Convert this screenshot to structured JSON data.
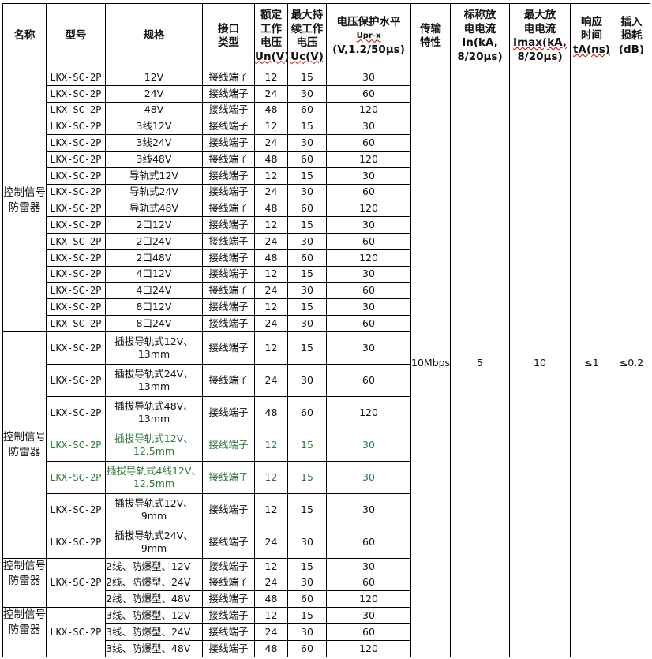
{
  "header": {
    "name": "名称",
    "model": "型号",
    "spec": "规格",
    "interface": "接口类型",
    "un": "额定工作电压",
    "un_unit": "Un(V)",
    "uc": "最大持续工作电压",
    "uc_unit": "Uc(V)",
    "up": "电压保护水平",
    "up_sym": "Upr-x",
    "up_unit": "(V,1.2/50μs)",
    "trans": "传输特性",
    "in": "标称放电电流",
    "in_unit1": "In(kA,",
    "in_unit2": "8/20μs)",
    "imax": "最大放电电流",
    "imax_unit1": "Imax(kA,",
    "imax_unit2": "8/20μs)",
    "ta": "响应时间",
    "ta_unit": "tA(ns)",
    "loss": "插入损耗",
    "loss_unit": "(dB)"
  },
  "shared": {
    "trans": "10Mbps",
    "in": "5",
    "imax": "10",
    "ta": "≤1",
    "loss": "≤0.2"
  },
  "accent_green": "#2f7a3a",
  "groups": [
    {
      "name": "控制信号防雷器",
      "model_merged": false,
      "tall": false,
      "rows": [
        [
          "LKX-SC-2P",
          "12V",
          "接线端子",
          "12",
          "15",
          "30"
        ],
        [
          "LKX-SC-2P",
          "24V",
          "接线端子",
          "24",
          "30",
          "60"
        ],
        [
          "LKX-SC-2P",
          "48V",
          "接线端子",
          "48",
          "60",
          "120"
        ],
        [
          "LKX-SC-2P",
          "3线12V",
          "接线端子",
          "12",
          "15",
          "30"
        ],
        [
          "LKX-SC-2P",
          "3线24V",
          "接线端子",
          "24",
          "30",
          "60"
        ],
        [
          "LKX-SC-2P",
          "3线48V",
          "接线端子",
          "48",
          "60",
          "120"
        ],
        [
          "LKX-SC-2P",
          "导轨式12V",
          "接线端子",
          "12",
          "15",
          "30"
        ],
        [
          "LKX-SC-2P",
          "导轨式24V",
          "接线端子",
          "24",
          "30",
          "60"
        ],
        [
          "LKX-SC-2P",
          "导轨式48V",
          "接线端子",
          "48",
          "60",
          "120"
        ],
        [
          "LKX-SC-2P",
          "2口12V",
          "接线端子",
          "12",
          "15",
          "30"
        ],
        [
          "LKX-SC-2P",
          "2口24V",
          "接线端子",
          "24",
          "30",
          "60"
        ],
        [
          "LKX-SC-2P",
          "2口48V",
          "接线端子",
          "48",
          "60",
          "120"
        ],
        [
          "LKX-SC-2P",
          "4口12V",
          "接线端子",
          "12",
          "15",
          "30"
        ],
        [
          "LKX-SC-2P",
          "4口24V",
          "接线端子",
          "24",
          "30",
          "60"
        ],
        [
          "LKX-SC-2P",
          "8口12V",
          "接线端子",
          "12",
          "15",
          "30"
        ],
        [
          "LKX-SC-2P",
          "8口24V",
          "接线端子",
          "24",
          "30",
          "60"
        ]
      ]
    },
    {
      "name": "控制信号防雷器",
      "model_merged": false,
      "tall": true,
      "rows": [
        [
          "LKX-SC-2P",
          "插拔导轨式12V、13mm",
          "接线端子",
          "12",
          "15",
          "30"
        ],
        [
          "LKX-SC-2P",
          "插拔导轨式24V、13mm",
          "接线端子",
          "24",
          "30",
          "60"
        ],
        [
          "LKX-SC-2P",
          "插拔导轨式48V、13mm",
          "接线端子",
          "48",
          "60",
          "120"
        ],
        [
          "LKX-SC-2P",
          "插拔导轨式12V、12.5mm",
          "接线端子",
          "12",
          "15",
          "30",
          "green"
        ],
        [
          "LKX-SC-2P",
          "插拔导轨式4线12V、12.5mm",
          "接线端子",
          "12",
          "15",
          "30",
          "green"
        ],
        [
          "LKX-SC-2P",
          "插拔导轨式12V、9mm",
          "接线端子",
          "12",
          "15",
          "30"
        ],
        [
          "LKX-SC-2P",
          "插拔导轨式24V、9mm",
          "接线端子",
          "24",
          "30",
          "60"
        ]
      ]
    },
    {
      "name": "控制信号防雷器",
      "model_merged": true,
      "tall": false,
      "rows": [
        [
          "LKX-SC-2P",
          "2线、防爆型、12V",
          "接线端子",
          "12",
          "15",
          "30"
        ],
        [
          "LKX-SC-2P",
          "2线、防爆型、24V",
          "接线端子",
          "24",
          "30",
          "60"
        ],
        [
          "LKX-SC-2P",
          "2线、防爆型、48V",
          "接线端子",
          "48",
          "60",
          "120"
        ]
      ]
    },
    {
      "name": "控制信号防雷器",
      "model_merged": true,
      "tall": false,
      "rows": [
        [
          "LKX-SC-2P",
          "3线、防爆型、12V",
          "接线端子",
          "12",
          "15",
          "30"
        ],
        [
          "LKX-SC-2P",
          "3线、防爆型、24V",
          "接线端子",
          "24",
          "30",
          "60"
        ],
        [
          "LKX-SC-2P",
          "3线、防爆型、48V",
          "接线端子",
          "48",
          "60",
          "120"
        ]
      ]
    }
  ]
}
